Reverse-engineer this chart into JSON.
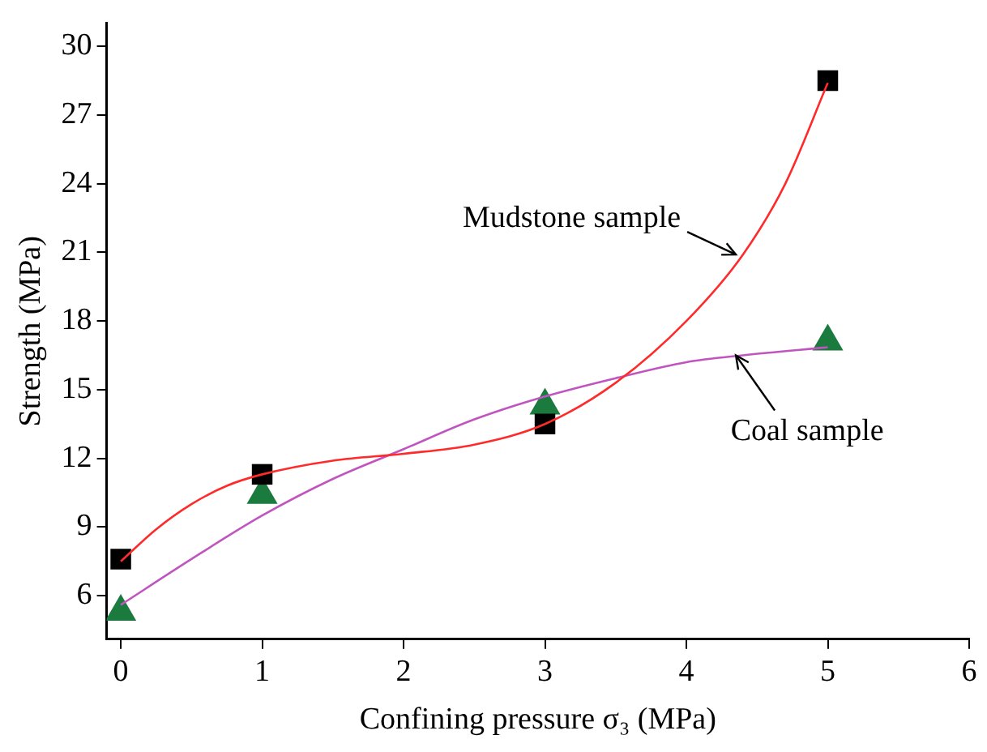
{
  "chart_data": {
    "type": "scatter",
    "xlabel": "Confining pressure σ₃ (MPa)",
    "ylabel": "Strength (MPa)",
    "xlim": [
      -0.1,
      6
    ],
    "xticks": [
      0,
      1,
      2,
      3,
      4,
      5,
      6
    ],
    "ylim": [
      4.1,
      31
    ],
    "yticks": [
      6,
      9,
      12,
      15,
      18,
      21,
      24,
      27,
      30
    ],
    "grid": false,
    "legend": false,
    "series": [
      {
        "type": "line",
        "color": "#ff2a2a",
        "marker": "none",
        "x": [
          0,
          0.25,
          0.5,
          0.75,
          1,
          1.5,
          2,
          2.5,
          3,
          3.5,
          4,
          4.4,
          4.7,
          5
        ],
        "values": [
          7.5,
          8.9,
          10.0,
          10.8,
          11.3,
          11.9,
          12.2,
          12.6,
          13.5,
          15.3,
          18.0,
          20.9,
          24.0,
          28.4
        ]
      },
      {
        "type": "line",
        "color": "#c055c0",
        "marker": "none",
        "x": [
          0,
          0.5,
          1,
          1.5,
          2,
          2.5,
          3,
          3.5,
          4,
          4.4,
          5
        ],
        "values": [
          5.6,
          7.6,
          9.5,
          11.1,
          12.4,
          13.7,
          14.7,
          15.5,
          16.2,
          16.5,
          16.85
        ]
      },
      {
        "color": "#000000",
        "marker": "square",
        "x": [
          0,
          1,
          3,
          5
        ],
        "values": [
          7.6,
          11.3,
          13.5,
          28.5
        ]
      },
      {
        "color": "#1b7a3e",
        "marker": "triangle",
        "x": [
          0,
          1,
          3,
          5
        ],
        "values": [
          5.3,
          10.4,
          14.3,
          17.1
        ]
      }
    ],
    "annotations": [
      {
        "text": "Mudstone sample",
        "x": 4.35,
        "y": 20.9
      },
      {
        "text": "Coal sample",
        "x": 4.35,
        "y": 16.5
      }
    ]
  }
}
